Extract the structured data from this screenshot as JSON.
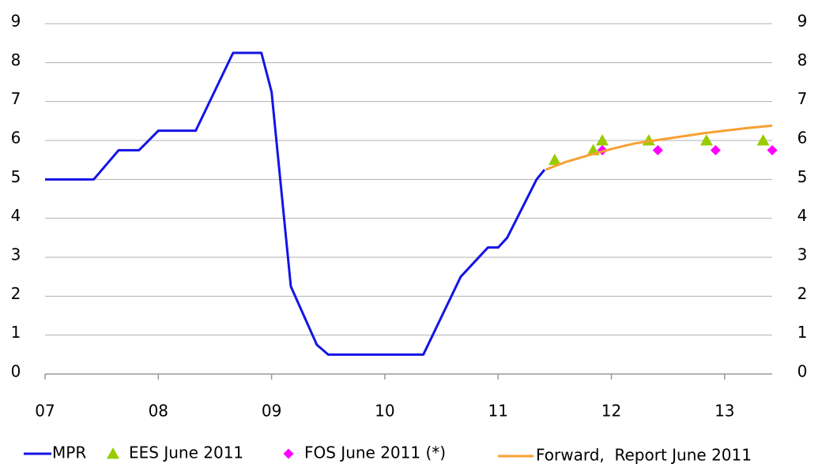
{
  "chart_data": {
    "type": "line",
    "xlim": [
      2007,
      2013.42
    ],
    "xticks": [
      {
        "value": 2007,
        "label": "07"
      },
      {
        "value": 2008,
        "label": "08"
      },
      {
        "value": 2009,
        "label": "09"
      },
      {
        "value": 2010,
        "label": "10"
      },
      {
        "value": 2011,
        "label": "11"
      },
      {
        "value": 2012,
        "label": "12"
      },
      {
        "value": 2013,
        "label": "13"
      }
    ],
    "ylim": [
      0,
      9
    ],
    "yticks": [
      0,
      1,
      2,
      3,
      4,
      5,
      6,
      7,
      8,
      9
    ],
    "grid": true,
    "legend": "bottom",
    "series": [
      {
        "name": "MPR",
        "color": "#1414e6",
        "marker": "line",
        "x": [
          2007.0,
          2007.43,
          2007.65,
          2007.83,
          2008.0,
          2008.33,
          2008.66,
          2008.91,
          2009.0,
          2009.17,
          2009.4,
          2009.5,
          2010.34,
          2010.67,
          2010.91,
          2011.0,
          2011.08,
          2011.34,
          2011.41
        ],
        "values": [
          5,
          5,
          5.75,
          5.75,
          6.25,
          6.25,
          8.25,
          8.25,
          7.25,
          2.25,
          0.75,
          0.5,
          0.5,
          2.5,
          3.25,
          3.25,
          3.5,
          5,
          5.25
        ]
      },
      {
        "name": "EES June 2011",
        "color": "#99cc00",
        "marker": "triangle",
        "x": [
          2011.5,
          2011.84,
          2011.92,
          2012.33,
          2012.84,
          2013.34
        ],
        "values": [
          5.5,
          5.75,
          6,
          6,
          6,
          6
        ]
      },
      {
        "name": "FOS June 2011 (*)",
        "color": "#ff00ff",
        "marker": "diamond",
        "x": [
          2011.92,
          2012.41,
          2012.92,
          2013.42
        ],
        "values": [
          5.75,
          5.75,
          5.75,
          5.75
        ]
      },
      {
        "name": "Forward,  Report June 2011",
        "color": "#f7a030",
        "marker": "line",
        "x": [
          2011.42,
          2011.6,
          2011.8,
          2012.0,
          2012.2,
          2012.5,
          2012.8,
          2013.0,
          2013.2,
          2013.42
        ],
        "values": [
          5.25,
          5.45,
          5.62,
          5.78,
          5.92,
          6.05,
          6.18,
          6.25,
          6.32,
          6.38
        ]
      }
    ]
  }
}
